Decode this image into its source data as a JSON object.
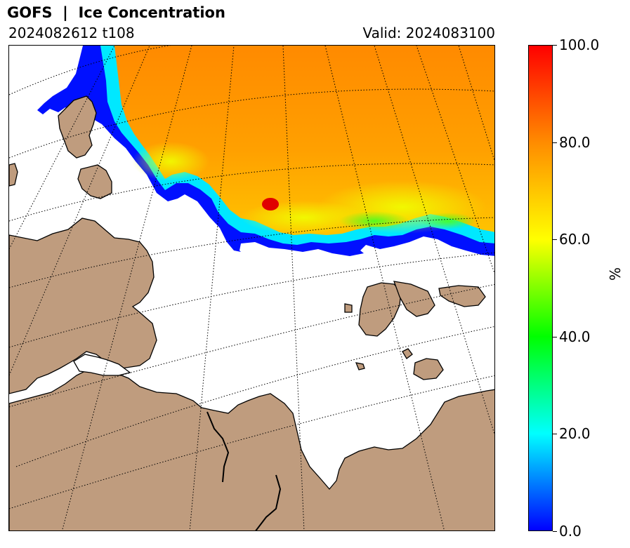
{
  "header": {
    "title": "GOFS  |  Ice Concentration",
    "run": "2024082612 t108",
    "valid": "Valid: 2024083100"
  },
  "map": {
    "variable": "Ice Concentration",
    "projection": "polar stereographic",
    "colors": {
      "land": "#bf9c7e",
      "open_water": "#ffffff",
      "coastline": "#000000",
      "graticule": "#000000"
    },
    "graticule_style": "dotted"
  },
  "colorbar": {
    "min": 0.0,
    "max": 100.0,
    "unit": "%",
    "ticks": [
      "0.0",
      "20.0",
      "40.0",
      "60.0",
      "80.0",
      "100.0"
    ],
    "colors": [
      "#0000ff",
      "#00ffff",
      "#00ff00",
      "#ffff00",
      "#ff8c00",
      "#ff0000"
    ]
  }
}
